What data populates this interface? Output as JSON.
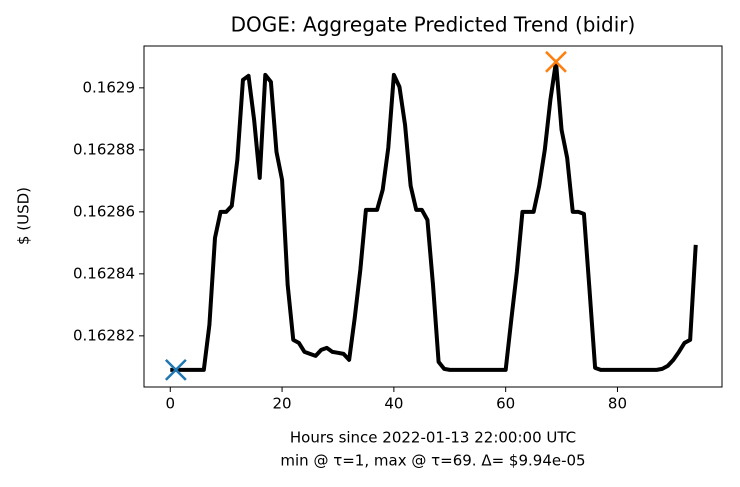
{
  "chart_data": {
    "type": "line",
    "title": "DOGE: Aggregate Predicted Trend (bidir)",
    "xlabel": "Hours since 2022-01-13 22:00:00 UTC",
    "note": "min @ τ=1, max @ τ=69. Δ= $9.94e-05",
    "ylabel": "$ (USD)",
    "color": "#000000",
    "x": [
      0,
      1,
      2,
      3,
      4,
      5,
      6,
      7,
      8,
      9,
      10,
      11,
      12,
      13,
      14,
      15,
      16,
      17,
      18,
      19,
      20,
      21,
      22,
      23,
      24,
      25,
      26,
      27,
      28,
      29,
      30,
      31,
      32,
      33,
      34,
      35,
      36,
      37,
      38,
      39,
      40,
      41,
      42,
      43,
      44,
      45,
      46,
      47,
      48,
      49,
      50,
      51,
      52,
      53,
      54,
      55,
      56,
      57,
      58,
      59,
      60,
      61,
      62,
      63,
      64,
      65,
      66,
      67,
      68,
      69,
      70,
      71,
      72,
      73,
      74,
      75,
      76,
      77,
      78,
      79,
      80,
      81,
      82,
      83,
      84,
      85,
      86,
      87,
      88,
      89,
      90,
      91,
      92,
      93,
      94
    ],
    "values": [
      0.16280903,
      0.16280903,
      0.16280903,
      0.16280903,
      0.16280903,
      0.16280903,
      0.16280903,
      0.16282355,
      0.16285161,
      0.16286,
      0.16286,
      0.16286194,
      0.16287677,
      0.16290258,
      0.16290387,
      0.16288968,
      0.16287097,
      0.16290419,
      0.16290194,
      0.16287935,
      0.16287032,
      0.16283645,
      0.16281871,
      0.16281774,
      0.16281484,
      0.16281419,
      0.16281355,
      0.16281548,
      0.16281613,
      0.16281484,
      0.16281452,
      0.16281419,
      0.16281226,
      0.16282581,
      0.16284129,
      0.16286065,
      0.16286065,
      0.16286065,
      0.1628671,
      0.16288065,
      0.16290419,
      0.16290032,
      0.16288806,
      0.16286839,
      0.16286065,
      0.16286065,
      0.16285742,
      0.16283645,
      0.16281161,
      0.16280935,
      0.16280903,
      0.16280903,
      0.16280903,
      0.16280903,
      0.16280903,
      0.16280903,
      0.16280903,
      0.16280903,
      0.16280903,
      0.16280903,
      0.16280903,
      0.16282516,
      0.16284065,
      0.16286,
      0.16286,
      0.16286,
      0.16286839,
      0.16288,
      0.16289613,
      0.1629084,
      0.16288645,
      0.16287742,
      0.16286,
      0.16286,
      0.16285935,
      0.16283484,
      0.16280968,
      0.16280903,
      0.16280903,
      0.16280903,
      0.16280903,
      0.16280903,
      0.16280903,
      0.16280903,
      0.16280903,
      0.16280903,
      0.16280903,
      0.16280903,
      0.16280935,
      0.16281032,
      0.16281226,
      0.16281484,
      0.16281774,
      0.16281871,
      0.16284935
    ],
    "highlights": [
      {
        "x": 1,
        "color": "#1f77b4"
      },
      {
        "x": 69,
        "color": "#ff7f0e"
      }
    ],
    "xlim": [
      -4.7,
      98.7
    ],
    "xticks": [
      0,
      20,
      40,
      60,
      80
    ],
    "ylim": [
      0.1628035,
      0.1629135
    ],
    "yticks": [
      0.16282,
      0.16284,
      0.16286,
      0.16288,
      0.1629
    ]
  }
}
